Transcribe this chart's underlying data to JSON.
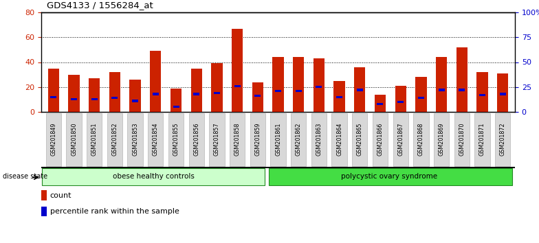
{
  "title": "GDS4133 / 1556284_at",
  "samples": [
    "GSM201849",
    "GSM201850",
    "GSM201851",
    "GSM201852",
    "GSM201853",
    "GSM201854",
    "GSM201855",
    "GSM201856",
    "GSM201857",
    "GSM201858",
    "GSM201859",
    "GSM201861",
    "GSM201862",
    "GSM201863",
    "GSM201864",
    "GSM201865",
    "GSM201866",
    "GSM201867",
    "GSM201868",
    "GSM201869",
    "GSM201870",
    "GSM201871",
    "GSM201872"
  ],
  "counts": [
    35,
    30,
    27,
    32,
    26,
    49,
    19,
    35,
    39,
    67,
    24,
    44,
    44,
    43,
    25,
    36,
    14,
    21,
    28,
    44,
    52,
    32,
    31
  ],
  "percentiles": [
    15,
    13,
    13,
    14,
    11,
    18,
    5,
    18,
    19,
    26,
    16,
    21,
    21,
    25,
    15,
    22,
    8,
    10,
    14,
    22,
    22,
    17,
    18
  ],
  "group1_label": "obese healthy controls",
  "group2_label": "polycystic ovary syndrome",
  "group1_size": 11,
  "group2_size": 12,
  "group1_color": "#ccffcc",
  "group2_color": "#44dd44",
  "group_border_color": "#228822",
  "bar_color": "#cc2200",
  "percentile_color": "#0000cc",
  "ylim_left": [
    0,
    80
  ],
  "ylim_right": [
    0,
    100
  ],
  "yticks_left": [
    0,
    20,
    40,
    60,
    80
  ],
  "yticks_right": [
    0,
    25,
    50,
    75,
    100
  ],
  "yticklabels_right": [
    "0",
    "25",
    "50",
    "75",
    "100%"
  ],
  "disease_state_label": "disease state",
  "legend_count_label": "count",
  "legend_pct_label": "percentile rank within the sample"
}
